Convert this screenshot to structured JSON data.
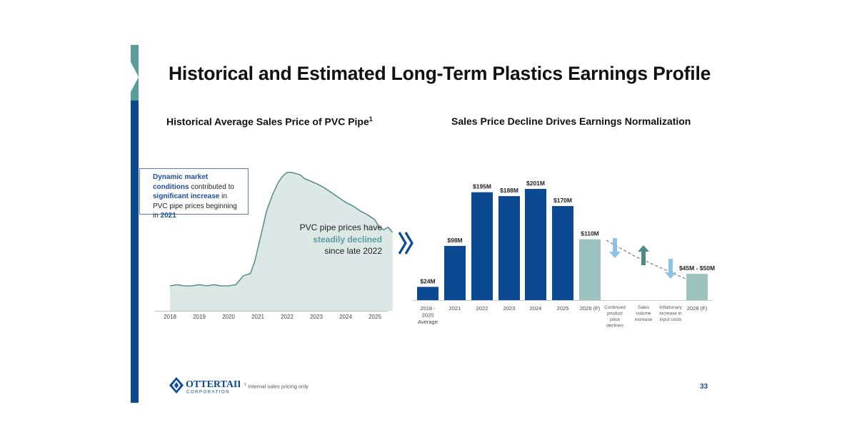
{
  "title": "Historical and Estimated Long-Term Plastics Earnings Profile",
  "left_panel": {
    "subtitle": "Historical Average Sales Price of PVC Pipe",
    "subtitle_sup": "1",
    "callout": {
      "p1": "Dynamic market conditions",
      "p2": " contributed to ",
      "p3": "significant increase",
      "p4": " in PVC pipe prices beginning in ",
      "p5": "2021"
    },
    "annotation": {
      "line1": "PVC pipe prices have",
      "line2": "steadily declined",
      "line3": "since late 2022"
    }
  },
  "right_panel": {
    "subtitle": "Sales Price Decline Drives Earnings Normalization"
  },
  "footnote": {
    "sup": "1",
    "text": " Internal sales pricing only"
  },
  "page_number": "33",
  "logo": {
    "line1": "OTTERTAIL",
    "line2": "CORPORATION"
  },
  "colors": {
    "primary_blue": "#0b4a93",
    "teal_bar": "#9dc3c0",
    "area_fill": "#dbe8e6",
    "area_line": "#5f8f8c",
    "down_arrow": "#8cc2e6",
    "up_arrow": "#4f8b86",
    "accent_teal": "#5a9e9a"
  },
  "chart_data": [
    {
      "type": "area",
      "x_ticks": [
        "2018",
        "2019",
        "2020",
        "2021",
        "2022",
        "2023",
        "2024",
        "2025"
      ],
      "x": [
        2018.0,
        2018.25,
        2018.5,
        2018.75,
        2019.0,
        2019.25,
        2019.5,
        2019.75,
        2020.0,
        2020.25,
        2020.5,
        2020.75,
        2020.9,
        2021.1,
        2021.3,
        2021.5,
        2021.7,
        2021.85,
        2022.0,
        2022.15,
        2022.3,
        2022.45,
        2022.6,
        2022.8,
        2023.0,
        2023.25,
        2023.5,
        2023.75,
        2024.0,
        2024.25,
        2024.5,
        2024.75,
        2025.0,
        2025.15,
        2025.3,
        2025.45,
        2025.6
      ],
      "values": [
        20,
        21,
        20,
        20,
        21,
        20,
        21,
        20,
        20,
        21,
        28,
        30,
        40,
        60,
        80,
        93,
        103,
        108,
        111,
        111,
        110,
        109,
        106,
        104,
        102,
        99,
        95,
        91,
        87,
        84,
        80,
        77,
        73,
        67,
        65,
        67,
        63
      ],
      "ylim": [
        0,
        120
      ],
      "grid": false,
      "legend": "none"
    },
    {
      "type": "bar",
      "categories": [
        "2018 - 2020 Average",
        "2021",
        "2022",
        "2023",
        "2024",
        "2025",
        "2026 (F)",
        "2028 (F)"
      ],
      "values": [
        24,
        98,
        195,
        188,
        201,
        170,
        110,
        47.5
      ],
      "data_labels": [
        "$24M",
        "$98M",
        "$195M",
        "$188M",
        "$201M",
        "$170M",
        "$110M",
        "$45M - $50M"
      ],
      "kinds": [
        "actual",
        "actual",
        "actual",
        "actual",
        "actual",
        "actual",
        "forecast",
        "forecast"
      ],
      "drivers": [
        {
          "label": "Continued product price declines",
          "direction": "down"
        },
        {
          "label": "Sales volume increase",
          "direction": "up"
        },
        {
          "label": "Inflationary increase in input costs",
          "direction": "down"
        }
      ],
      "ylim": [
        0,
        210
      ],
      "grid": false,
      "legend": "none"
    }
  ]
}
